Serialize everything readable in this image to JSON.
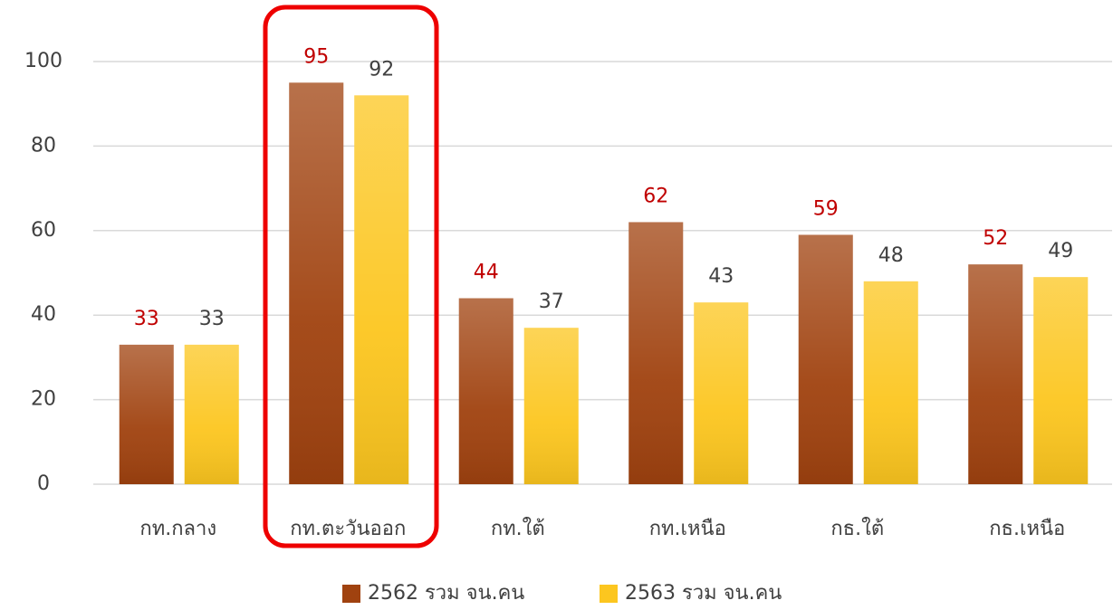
{
  "chart_data": {
    "type": "bar",
    "categories": [
      "กท.กลาง",
      "กท.ตะวันออก",
      "กท.ใต้",
      "กท.เหนือ",
      "กธ.ใต้",
      "กธ.เหนือ"
    ],
    "series": [
      {
        "name": "2562 รวม จน.คน",
        "color": "#a0420f",
        "label_color": "#c00000",
        "values": [
          33,
          95,
          44,
          62,
          59,
          52
        ]
      },
      {
        "name": "2563 รวม จน.คน",
        "color": "#fcc61f",
        "label_color": "#404040",
        "values": [
          33,
          92,
          37,
          43,
          48,
          49
        ]
      }
    ],
    "ylim": [
      0,
      100
    ],
    "yticks": [
      0,
      20,
      40,
      60,
      80,
      100
    ],
    "grid": true,
    "legend": "bottom"
  }
}
